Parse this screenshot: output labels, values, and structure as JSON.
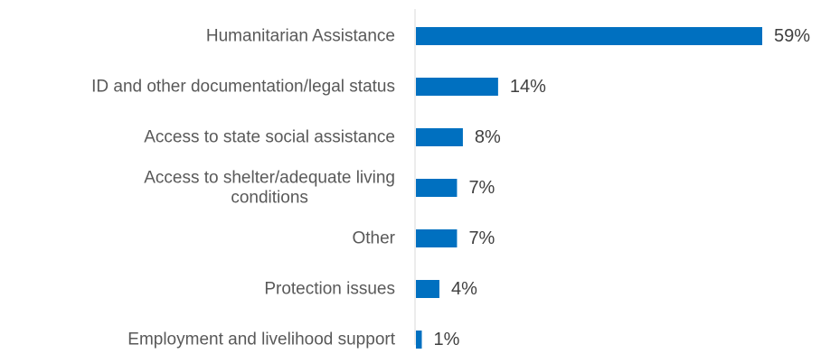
{
  "chart_data": {
    "type": "bar",
    "orientation": "horizontal",
    "title": "",
    "xlabel": "",
    "ylabel": "",
    "categories": [
      "Humanitarian Assistance",
      "ID and other documentation/legal status",
      "Access to state social assistance",
      "Access to shelter/adequate living conditions",
      "Other",
      "Protection issues",
      "Employment and livelihood support"
    ],
    "category_lines": [
      [
        "Humanitarian Assistance"
      ],
      [
        "ID and other documentation/legal status"
      ],
      [
        "Access to state social assistance"
      ],
      [
        "Access to shelter/adequate living",
        "conditions"
      ],
      [
        "Other"
      ],
      [
        "Protection issues"
      ],
      [
        "Employment and livelihood support"
      ]
    ],
    "values": [
      59,
      14,
      8,
      7,
      7,
      4,
      1
    ],
    "value_labels": [
      "59%",
      "14%",
      "8%",
      "7%",
      "7%",
      "4%",
      "1%"
    ],
    "unit": "%",
    "xlim": [
      0,
      59
    ],
    "grid": false,
    "legend": "none",
    "bar_color": "#0070C0",
    "axis_color": "#D9D9D9"
  }
}
